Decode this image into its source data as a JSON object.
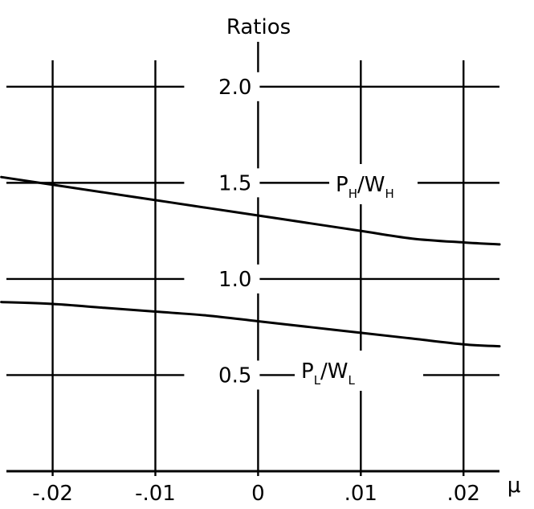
{
  "chart_data": {
    "type": "line",
    "ylabel": "Ratios",
    "xlabel": "μ",
    "xlim": [
      -0.0245,
      0.0235
    ],
    "ylim": [
      0,
      2.2
    ],
    "x_ticks": [
      {
        "value": -0.02,
        "label": "-.02"
      },
      {
        "value": -0.01,
        "label": "-.01"
      },
      {
        "value": 0,
        "label": "0"
      },
      {
        "value": 0.01,
        "label": ".01"
      },
      {
        "value": 0.02,
        "label": ".02"
      }
    ],
    "y_ticks": [
      {
        "value": 0.5,
        "label": "0.5"
      },
      {
        "value": 1.0,
        "label": "1.0"
      },
      {
        "value": 1.5,
        "label": "1.5"
      },
      {
        "value": 2.0,
        "label": "2.0"
      }
    ],
    "grid": true,
    "series": [
      {
        "name": "PH/WH",
        "label_main": [
          "P",
          "/W"
        ],
        "label_sub": [
          "H",
          "H"
        ],
        "x": [
          -0.025,
          -0.02,
          -0.015,
          -0.01,
          -0.005,
          0,
          0.005,
          0.01,
          0.015,
          0.02,
          0.0235
        ],
        "y": [
          1.53,
          1.49,
          1.45,
          1.41,
          1.37,
          1.33,
          1.29,
          1.25,
          1.21,
          1.19,
          1.18
        ]
      },
      {
        "name": "PL/WL",
        "label_main": [
          "P",
          "/W"
        ],
        "label_sub": [
          "L",
          "L"
        ],
        "x": [
          -0.025,
          -0.02,
          -0.015,
          -0.01,
          -0.005,
          0,
          0.005,
          0.01,
          0.015,
          0.02,
          0.0235
        ],
        "y": [
          0.88,
          0.87,
          0.85,
          0.83,
          0.81,
          0.78,
          0.75,
          0.72,
          0.69,
          0.66,
          0.65
        ]
      }
    ]
  }
}
